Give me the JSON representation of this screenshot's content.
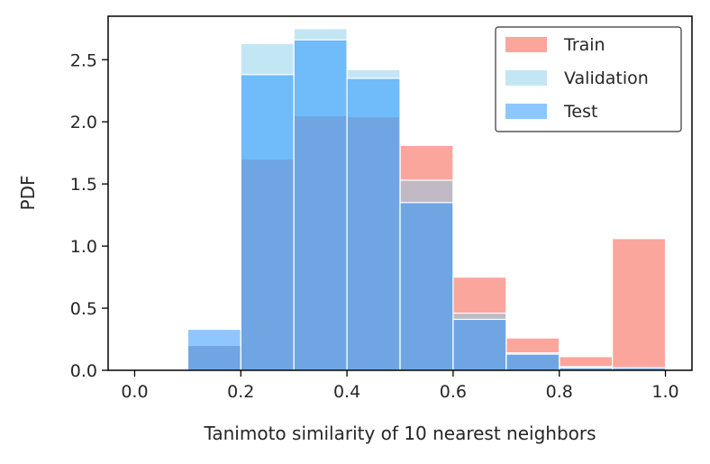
{
  "chart_data": {
    "type": "bar",
    "subtype": "overlapping-histogram",
    "title": "",
    "xlabel": "Tanimoto similarity of 10 nearest neighbors",
    "ylabel": "PDF",
    "xlim": [
      -0.05,
      1.05
    ],
    "ylim": [
      0,
      2.85
    ],
    "xticks": [
      0.0,
      0.2,
      0.4,
      0.6,
      0.8,
      1.0
    ],
    "xtick_labels": [
      "0.0",
      "0.2",
      "0.4",
      "0.6",
      "0.8",
      "1.0"
    ],
    "yticks": [
      0.0,
      0.5,
      1.0,
      1.5,
      2.0,
      2.5
    ],
    "ytick_labels": [
      "0.0",
      "0.5",
      "1.0",
      "1.5",
      "2.0",
      "2.5"
    ],
    "bin_edges": [
      0.0,
      0.1,
      0.2,
      0.3,
      0.4,
      0.5,
      0.6,
      0.7,
      0.8,
      0.9,
      1.0
    ],
    "legend_position": "top-right",
    "series": [
      {
        "name": "Train",
        "color": "#fa8072",
        "values": [
          0.0,
          0.2,
          1.7,
          2.05,
          2.04,
          1.81,
          0.75,
          0.26,
          0.11,
          1.06
        ]
      },
      {
        "name": "Validation",
        "color": "#87ceeb",
        "values": [
          0.0,
          0.2,
          2.63,
          2.75,
          2.42,
          1.53,
          0.46,
          0.14,
          0.03,
          0.02
        ]
      },
      {
        "name": "Test",
        "color": "#1e90ff",
        "values": [
          0.0,
          0.33,
          2.38,
          2.66,
          2.35,
          1.35,
          0.41,
          0.13,
          0.02,
          0.02
        ]
      }
    ]
  }
}
